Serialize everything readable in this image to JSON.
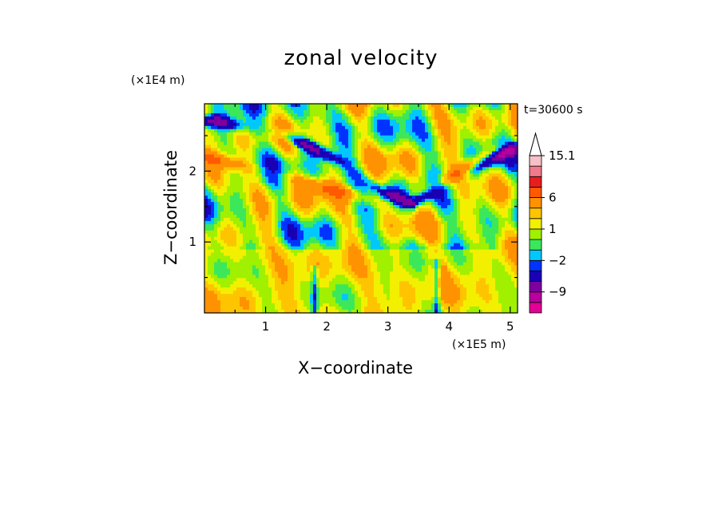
{
  "chart_data": {
    "type": "heatmap",
    "title": "zonal velocity",
    "xlabel": "X−coordinate",
    "ylabel": "Z−coordinate",
    "x_unit": "(×1E5 m)",
    "y_unit": "(×1E4 m)",
    "time_label": "t=30600 s",
    "xlim": [
      0,
      5.12
    ],
    "ylim": [
      0,
      2.95
    ],
    "x_ticks": [
      "1",
      "2",
      "3",
      "4",
      "5"
    ],
    "y_ticks": [
      "1",
      "2"
    ],
    "colorbar": {
      "levels": [
        -15,
        -12,
        -9,
        -6,
        -3,
        -2,
        -1,
        0,
        1,
        2,
        3,
        6,
        9,
        12,
        15.1
      ],
      "tick_labels": [
        "15.1",
        "6",
        "1",
        "−2",
        "−9"
      ],
      "colors": [
        "#e30094",
        "#b8009e",
        "#7d009e",
        "#1a00b4",
        "#0033ff",
        "#00c8ff",
        "#3ce85a",
        "#a0f000",
        "#f2f000",
        "#ffc400",
        "#ff9200",
        "#ff5a00",
        "#e81e1e",
        "#f07a8c",
        "#f6c0c8"
      ],
      "extend": "max"
    },
    "features": [
      {
        "name": "upper negative band",
        "x": [
          0.2,
          1.2,
          2.2,
          2.9,
          3.4,
          4.2,
          5.0
        ],
        "z": [
          2.7,
          2.55,
          2.15,
          1.7,
          1.55,
          1.95,
          2.3
        ],
        "u_min": -8
      },
      {
        "name": "upper positive band",
        "x": [
          0.0,
          1.0,
          2.0,
          3.0,
          3.6,
          4.4,
          5.1
        ],
        "z": [
          2.2,
          2.0,
          1.75,
          1.55,
          1.7,
          2.1,
          2.45
        ],
        "u_max": 5
      },
      {
        "name": "mountain wave 1",
        "x": 1.8,
        "z_top": 0.65,
        "u_min": -6
      },
      {
        "name": "mountain wave 2",
        "x": 3.8,
        "z_top": 0.75,
        "u_min": -6,
        "u_max": 6
      }
    ]
  }
}
